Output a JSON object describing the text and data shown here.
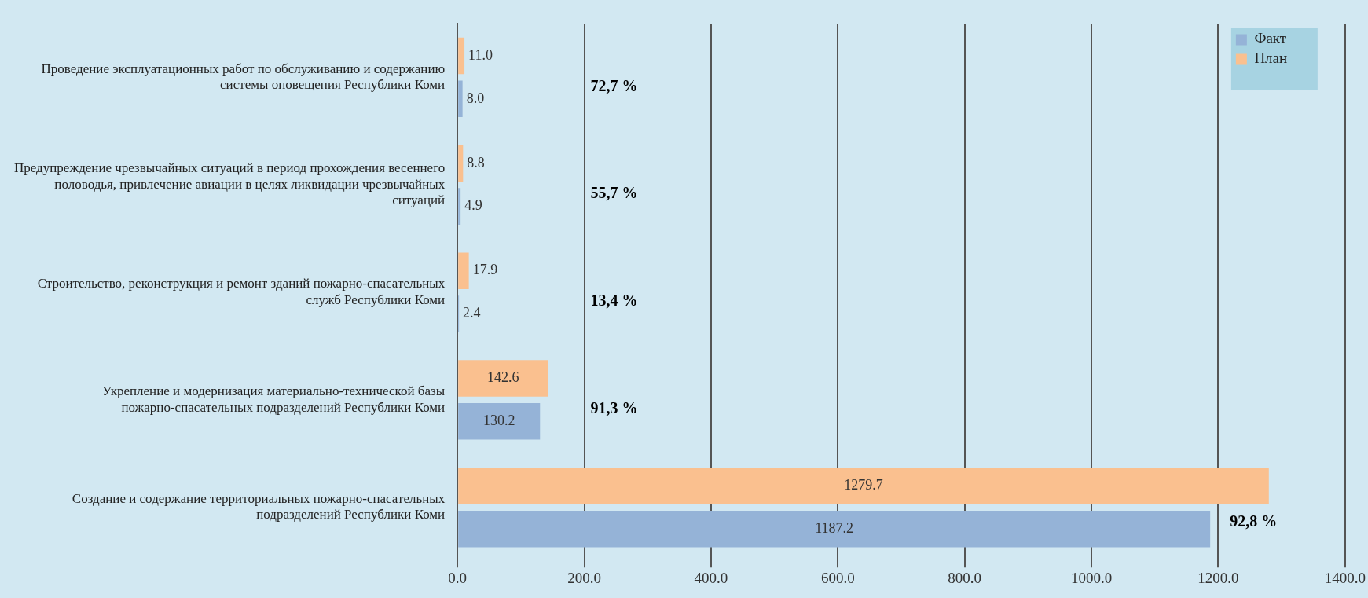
{
  "chart_data": {
    "type": "bar",
    "orientation": "horizontal",
    "categories": [
      "Проведение эксплуатационных работ по обслуживанию и содержанию системы оповещения Республики Коми",
      "Предупреждение чрезвычайных ситуаций в период прохождения весеннего половодья, привлечение авиации в целях ликвидации чрезвычайных ситуаций",
      "Строительство, реконструкция и ремонт зданий пожарно-спасательных служб Республики Коми",
      "Укрепление и модернизация материально-технической базы пожарно-спасательных подразделений Республики Коми",
      "Создание и содержание территориальных пожарно-спасательных подразделений Республики Коми"
    ],
    "series": [
      {
        "name": "Факт",
        "color": "#95b3d7",
        "values": [
          8.0,
          4.9,
          2.4,
          130.2,
          1187.2
        ],
        "value_labels": [
          "8.0",
          "4.9",
          "2.4",
          "130.2",
          "1187.2"
        ]
      },
      {
        "name": "План",
        "color": "#fac08f",
        "values": [
          11.0,
          8.8,
          17.9,
          142.6,
          1279.7
        ],
        "value_labels": [
          "11.0",
          "8.8",
          "17.9",
          "142.6",
          "1279.7"
        ]
      }
    ],
    "xlim": [
      0,
      1400
    ],
    "xticks": [
      {
        "value": 0,
        "label": "0.0"
      },
      {
        "value": 200,
        "label": "200.0"
      },
      {
        "value": 400,
        "label": "400.0"
      },
      {
        "value": 600,
        "label": "600.0"
      },
      {
        "value": 800,
        "label": "800.0"
      },
      {
        "value": 1000,
        "label": "1000.0"
      },
      {
        "value": 1200,
        "label": "1200.0"
      },
      {
        "value": 1400,
        "label": "1400.0"
      }
    ],
    "grid": "x",
    "legend": "top right",
    "annotations": [
      "72,7 %",
      "55,7 %",
      "13,4 %",
      "91,3 %",
      "92,8 %"
    ]
  }
}
